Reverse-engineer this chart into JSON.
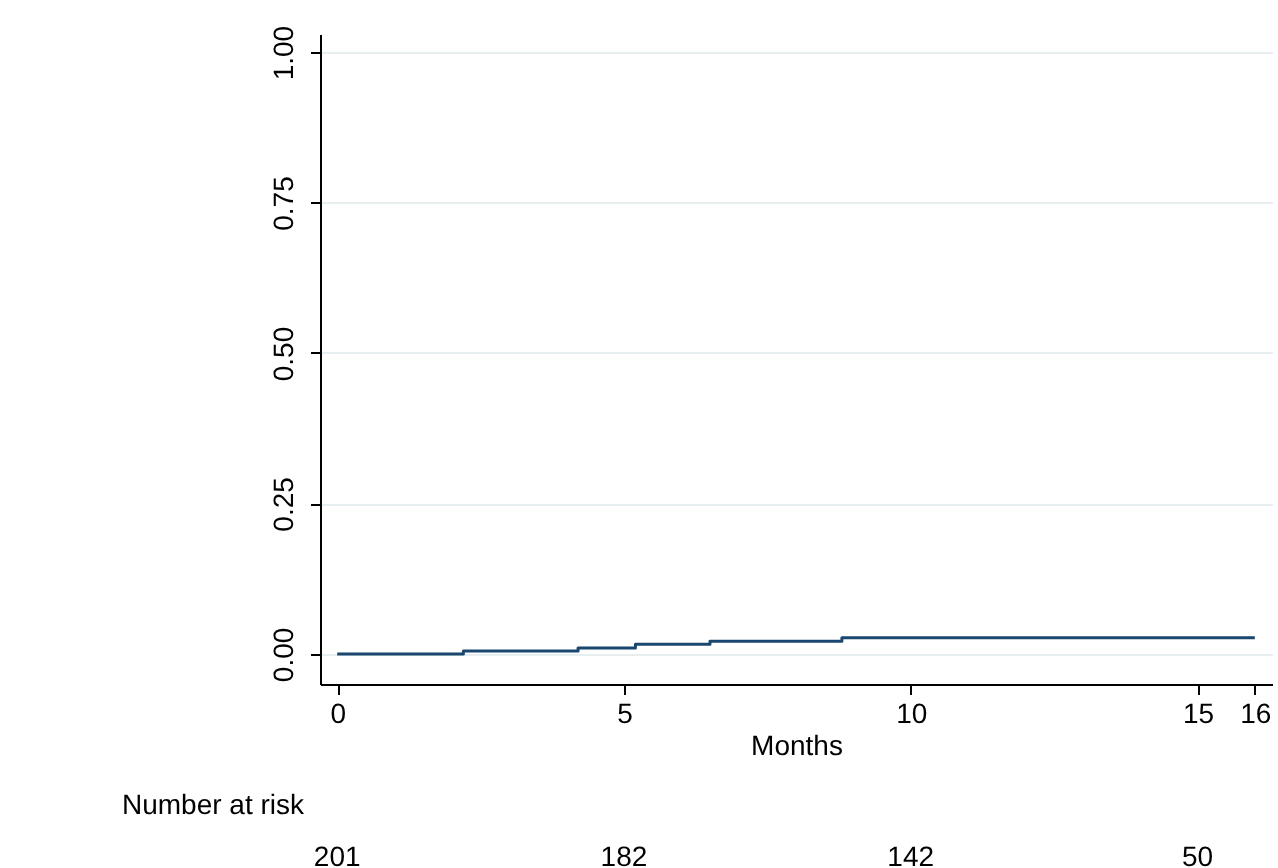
{
  "chart_data": {
    "type": "step",
    "xlabel": "Months",
    "x": [
      0,
      2.2,
      4.2,
      5.2,
      6.5,
      8.8,
      16
    ],
    "series": [
      {
        "color": "#1a476f",
        "values": [
          0,
          0.005,
          0.01,
          0.016,
          0.021,
          0.027,
          0.027
        ]
      }
    ],
    "xlim": [
      -0.3,
      16.3
    ],
    "xticks": [
      0,
      5,
      10,
      15,
      16
    ],
    "ylim": [
      -0.05,
      1.03
    ],
    "yticks": [
      {
        "value": 0,
        "label": "0.00"
      },
      {
        "value": 0.25,
        "label": "0.25"
      },
      {
        "value": 0.5,
        "label": "0.50"
      },
      {
        "value": 0.75,
        "label": "0.75"
      },
      {
        "value": 1,
        "label": "1.00"
      }
    ],
    "grid": "y",
    "annotations": [
      "Number at risk",
      "201",
      "182",
      "142",
      "50"
    ]
  }
}
